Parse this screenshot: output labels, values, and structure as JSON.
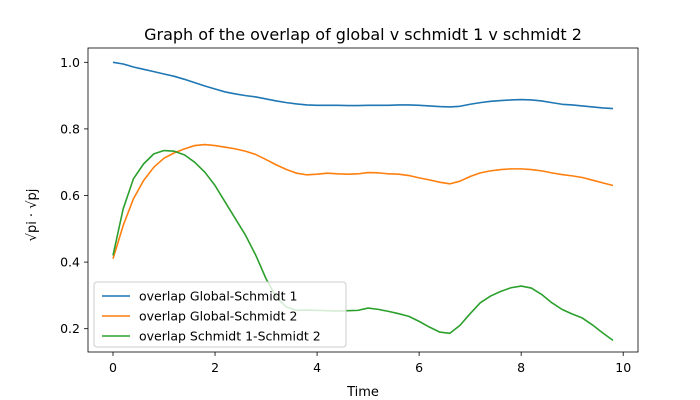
{
  "chart_data": {
    "type": "line",
    "title": "Graph of the overlap of global v schmidt 1 v schmidt 2",
    "xlabel": "Time",
    "ylabel": "√pi · √pj",
    "xlim": [
      -0.49,
      10.29
    ],
    "ylim": [
      0.13,
      1.043
    ],
    "xticks": [
      0,
      2,
      4,
      6,
      8,
      10
    ],
    "yticks": [
      0.2,
      0.4,
      0.6,
      0.8,
      1.0
    ],
    "grid": false,
    "legend_position": "lower-left",
    "x": [
      0.0,
      0.2,
      0.4,
      0.6,
      0.8,
      1.0,
      1.2,
      1.4,
      1.6,
      1.8,
      2.0,
      2.2,
      2.4,
      2.6,
      2.8,
      3.0,
      3.2,
      3.4,
      3.6,
      3.8,
      4.0,
      4.2,
      4.4,
      4.6,
      4.8,
      5.0,
      5.2,
      5.4,
      5.6,
      5.8,
      6.0,
      6.2,
      6.4,
      6.6,
      6.8,
      7.0,
      7.2,
      7.4,
      7.6,
      7.8,
      8.0,
      8.2,
      8.4,
      8.6,
      8.8,
      9.0,
      9.2,
      9.4,
      9.6,
      9.8
    ],
    "series": [
      {
        "name": "overlap Global-Schmidt 1",
        "color": "#1f77b4",
        "values": [
          1.0,
          0.995,
          0.986,
          0.979,
          0.972,
          0.965,
          0.958,
          0.949,
          0.939,
          0.929,
          0.92,
          0.911,
          0.905,
          0.9,
          0.896,
          0.89,
          0.884,
          0.879,
          0.875,
          0.872,
          0.871,
          0.871,
          0.871,
          0.87,
          0.87,
          0.871,
          0.871,
          0.871,
          0.872,
          0.872,
          0.871,
          0.869,
          0.867,
          0.866,
          0.868,
          0.874,
          0.879,
          0.883,
          0.885,
          0.887,
          0.888,
          0.887,
          0.884,
          0.879,
          0.874,
          0.872,
          0.869,
          0.866,
          0.863,
          0.861
        ]
      },
      {
        "name": "overlap Global-Schmidt 2",
        "color": "#ff7f0e",
        "values": [
          0.41,
          0.51,
          0.59,
          0.645,
          0.685,
          0.712,
          0.728,
          0.74,
          0.75,
          0.753,
          0.75,
          0.745,
          0.74,
          0.733,
          0.723,
          0.708,
          0.692,
          0.678,
          0.667,
          0.662,
          0.664,
          0.667,
          0.665,
          0.664,
          0.665,
          0.669,
          0.668,
          0.665,
          0.664,
          0.66,
          0.653,
          0.647,
          0.64,
          0.635,
          0.643,
          0.657,
          0.668,
          0.674,
          0.678,
          0.68,
          0.68,
          0.678,
          0.674,
          0.668,
          0.663,
          0.659,
          0.654,
          0.646,
          0.638,
          0.63
        ]
      },
      {
        "name": "overlap Schmidt 1-Schmidt 2",
        "color": "#2ca02c",
        "values": [
          0.42,
          0.56,
          0.65,
          0.695,
          0.725,
          0.735,
          0.733,
          0.722,
          0.7,
          0.67,
          0.63,
          0.58,
          0.53,
          0.48,
          0.42,
          0.35,
          0.295,
          0.265,
          0.255,
          0.256,
          0.255,
          0.254,
          0.253,
          0.254,
          0.255,
          0.262,
          0.258,
          0.252,
          0.245,
          0.237,
          0.222,
          0.205,
          0.19,
          0.186,
          0.21,
          0.245,
          0.278,
          0.298,
          0.312,
          0.323,
          0.328,
          0.322,
          0.303,
          0.278,
          0.258,
          0.244,
          0.232,
          0.211,
          0.187,
          0.165
        ]
      }
    ]
  }
}
